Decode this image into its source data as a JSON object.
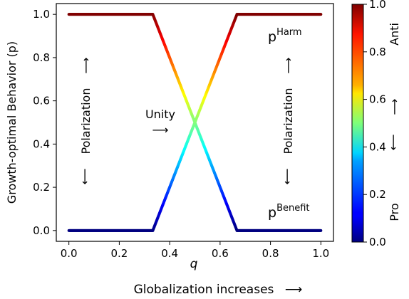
{
  "chart_data": {
    "type": "line",
    "xlabel": "q",
    "ylabel": "Growth-optimal Behavior (p)",
    "xlim": [
      -0.05,
      1.05
    ],
    "ylim": [
      -0.05,
      1.05
    ],
    "xticks": [
      "0.0",
      "0.2",
      "0.4",
      "0.6",
      "0.8",
      "1.0"
    ],
    "yticks": [
      "0.0",
      "0.2",
      "0.4",
      "0.6",
      "0.8",
      "1.0"
    ],
    "grid": false,
    "colormap": "jet",
    "series": [
      {
        "name": "p^Harm",
        "x": [
          0.0,
          0.333,
          0.667,
          1.0
        ],
        "y": [
          1.0,
          1.0,
          0.0,
          0.0
        ]
      },
      {
        "name": "p^Benefit",
        "x": [
          0.0,
          0.333,
          0.667,
          1.0
        ],
        "y": [
          0.0,
          0.0,
          1.0,
          1.0
        ]
      }
    ],
    "series_labels": {
      "harm_base": "p",
      "harm_sup": "Harm",
      "benefit_base": "p",
      "benefit_sup": "Benefit"
    },
    "annotations": {
      "left": "Polarization",
      "right": "Polarization",
      "unity": "Unity",
      "arrow_up": "⟶",
      "arrow_down": "⟶",
      "arrow_right": "⟶"
    },
    "colorbar": {
      "ticks": [
        "0.0",
        "0.2",
        "0.4",
        "0.6",
        "0.8",
        "1.0"
      ],
      "top_label": "Anti",
      "bottom_label": "Pro",
      "arrow_up": "⟶",
      "arrow_down": "⟶"
    },
    "footer": {
      "label": "Globalization increases",
      "arrow": "⟶"
    }
  }
}
